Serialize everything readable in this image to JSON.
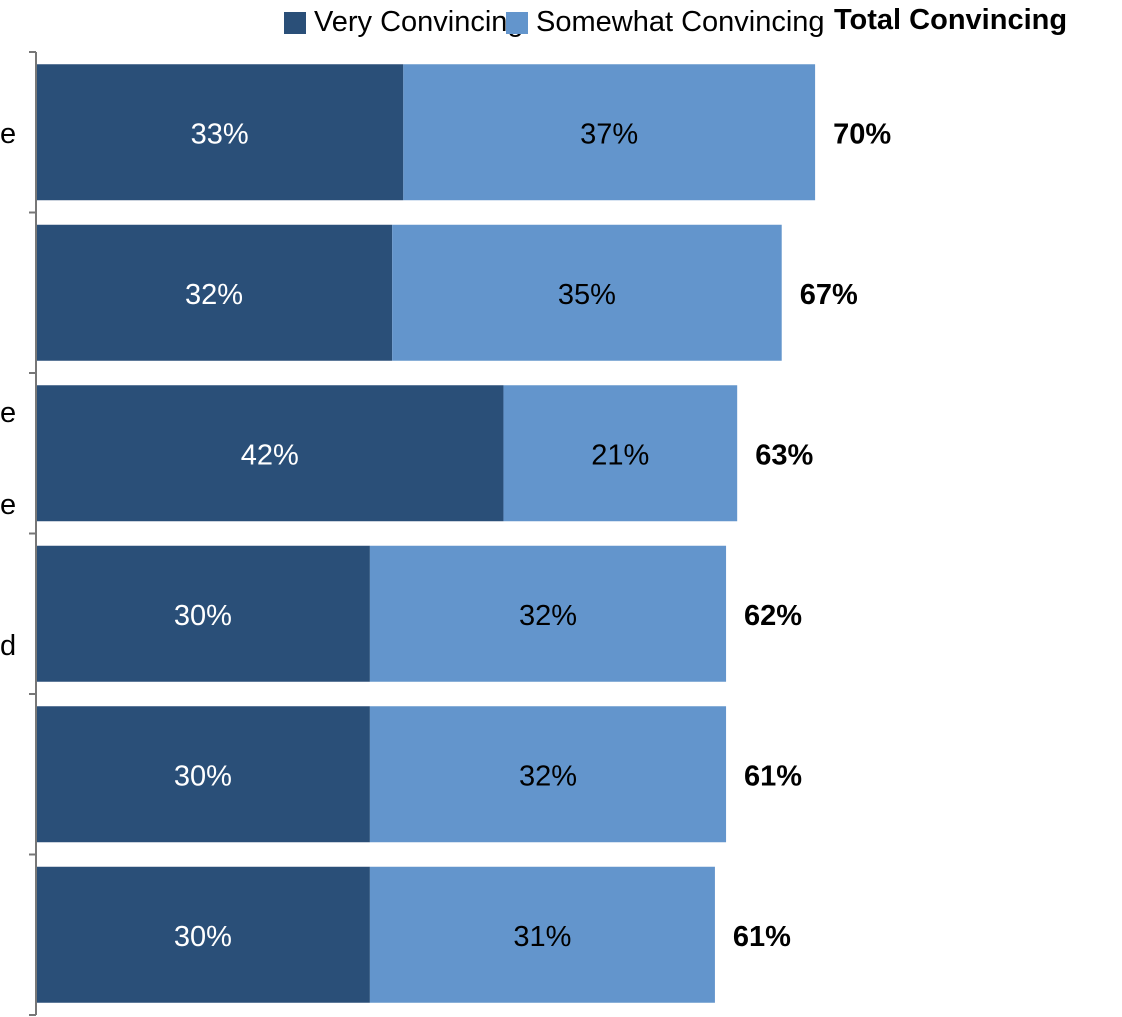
{
  "legend": {
    "very_label": "Very Convincing",
    "somewhat_label": "Somewhat Convincing",
    "total_label": "Total Convincing"
  },
  "colors": {
    "very": "#2A4F78",
    "somewhat": "#6395CC",
    "axis": "#777777"
  },
  "category_fragments": {
    "row1": "e",
    "row3a": "e",
    "row3b": "e",
    "row4": "d"
  },
  "chart_data": {
    "type": "bar",
    "orientation": "horizontal",
    "stacked": true,
    "categories": [
      "",
      "",
      "",
      "",
      "",
      ""
    ],
    "series": [
      {
        "name": "Very Convincing",
        "values": [
          33,
          32,
          42,
          30,
          30,
          30
        ]
      },
      {
        "name": "Somewhat Convincing",
        "values": [
          37,
          35,
          21,
          32,
          32,
          31
        ]
      }
    ],
    "value_labels": {
      "very": [
        "33%",
        "32%",
        "42%",
        "30%",
        "30%",
        "30%"
      ],
      "somewhat": [
        "37%",
        "35%",
        "21%",
        "32%",
        "32%",
        "31%"
      ],
      "total": [
        "70%",
        "67%",
        "63%",
        "62%",
        "61%",
        "61%"
      ]
    },
    "totals": [
      70,
      67,
      63,
      62,
      61,
      61
    ],
    "xlim": [
      0,
      100
    ],
    "grid": false,
    "legend_position": "top"
  }
}
